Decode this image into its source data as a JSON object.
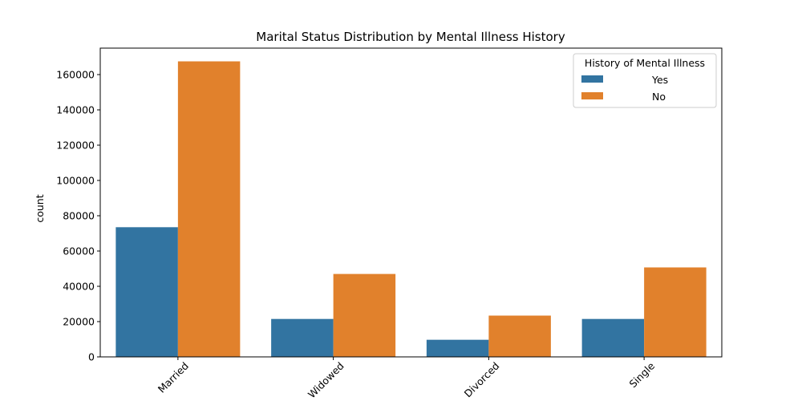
{
  "chart_data": {
    "type": "bar",
    "title": "Marital Status Distribution by Mental Illness History",
    "xlabel": "",
    "ylabel": "count",
    "categories": [
      "Married",
      "Widowed",
      "Divorced",
      "Single"
    ],
    "series": [
      {
        "name": "Yes",
        "color": "#3274a1",
        "values": [
          73500,
          21500,
          9700,
          21500
        ]
      },
      {
        "name": "No",
        "color": "#e1812c",
        "values": [
          167500,
          47000,
          23400,
          50700
        ]
      }
    ],
    "ylim": [
      0,
      175000
    ],
    "yticks": [
      0,
      20000,
      40000,
      60000,
      80000,
      100000,
      120000,
      140000,
      160000
    ],
    "ytick_labels": [
      "0",
      "20000",
      "40000",
      "60000",
      "80000",
      "100000",
      "120000",
      "140000",
      "160000"
    ],
    "legend": {
      "title": "History of Mental Illness",
      "placement": "top-right"
    },
    "grid": false,
    "xtick_rotation": 45
  }
}
